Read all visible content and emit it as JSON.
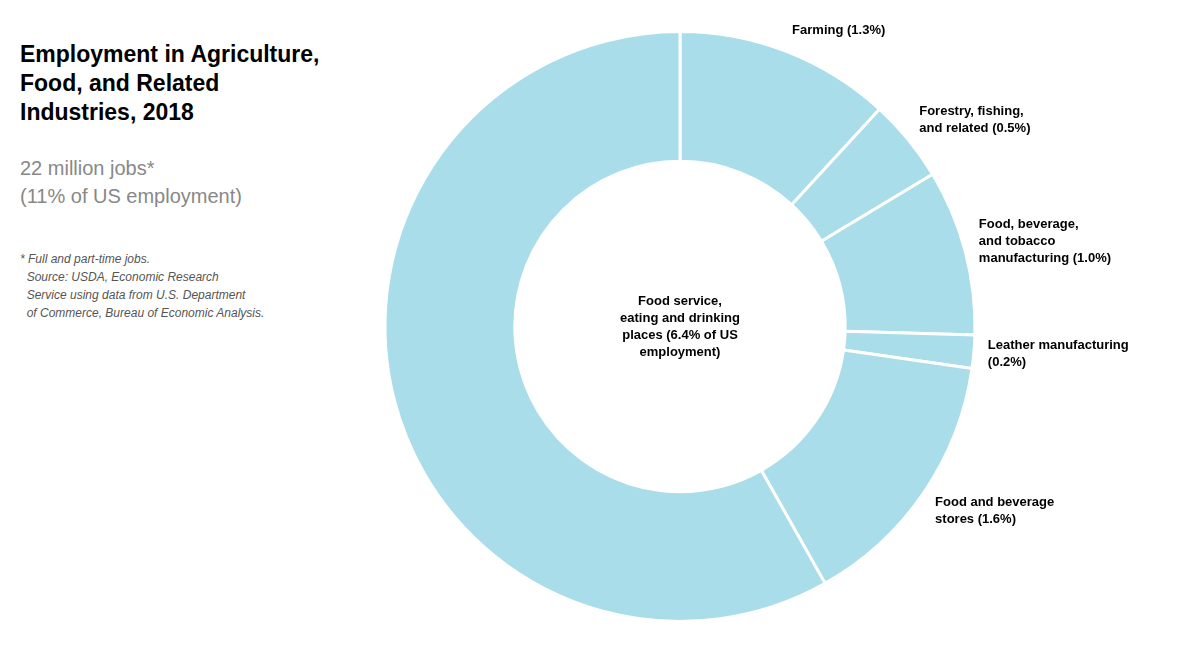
{
  "chart_data": {
    "type": "doughnut",
    "title": "Employment in Agriculture,\nFood, and Related\nIndustries, 2018",
    "subtitle": "22 million jobs*\n(11% of US employment)",
    "annotations": [
      "* Full and part-time jobs.\n  Source: USDA, Economic Research\n  Service using data from U.S. Department\n  of Commerce, Bureau of Economic Analysis."
    ],
    "categories": [
      "Farming (1.3%)",
      "Forestry, fishing,\nand related (0.5%)",
      "Food, beverage,\nand tobacco\nmanufacturing (1.0%)",
      "Leather manufacturing\n(0.2%)",
      "Food and beverage\nstores (1.6%)",
      "Food service,\neating and drinking\nplaces (6.4% of US\nemployment)"
    ],
    "values": [
      1.3,
      0.5,
      1.0,
      0.2,
      1.6,
      6.4
    ],
    "color": "#a8dde9"
  }
}
